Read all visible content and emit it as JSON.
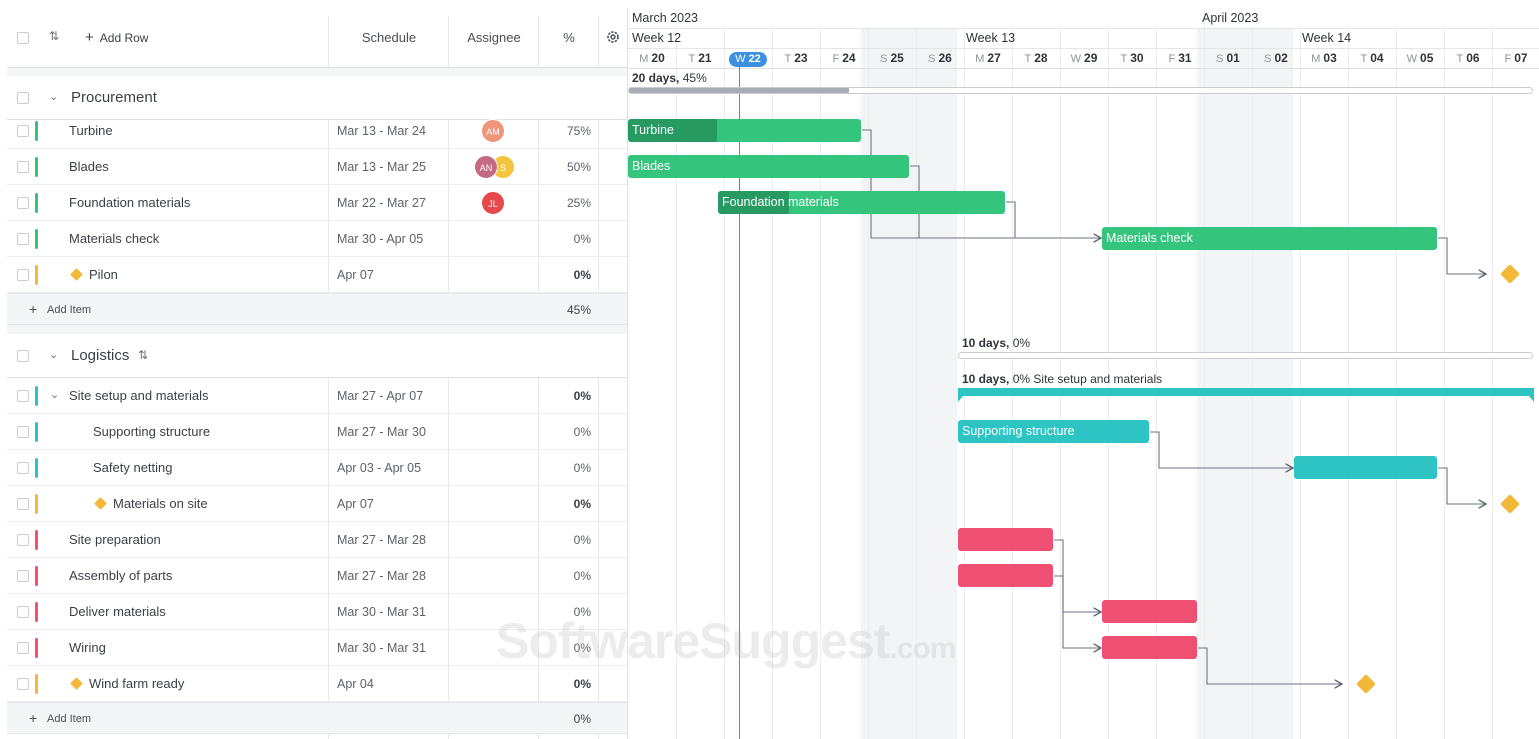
{
  "header": {
    "add_row_label": "Add Row",
    "col_schedule": "Schedule",
    "col_assignee": "Assignee",
    "col_percent": "%"
  },
  "groups": [
    {
      "name": "Procurement",
      "items": [
        {
          "name": "Turbine",
          "schedule": "Mar 13 - Mar 24",
          "pct": "75%",
          "color": "#34c47c",
          "assignees": [
            {
              "initials": "AM",
              "color": "#f0957a"
            }
          ]
        },
        {
          "name": "Blades",
          "schedule": "Mar 13 - Mar 25",
          "pct": "50%",
          "color": "#34c47c",
          "assignees": [
            {
              "initials": "AN",
              "color": "#c46a83"
            },
            {
              "initials": "S",
              "color": "#f3c53e"
            }
          ]
        },
        {
          "name": "Foundation materials",
          "schedule": "Mar 22 - Mar 27",
          "pct": "25%",
          "color": "#34c47c",
          "assignees": [
            {
              "initials": "JL",
              "color": "#e8484a"
            }
          ]
        },
        {
          "name": "Materials check",
          "schedule": "Mar 30 - Apr 05",
          "pct": "0%",
          "color": "#34c47c",
          "assignees": []
        },
        {
          "name": "Pilon",
          "schedule": "Apr 07",
          "pct": "0%",
          "color": "#f2b938",
          "milestone": true,
          "assignees": []
        }
      ],
      "add_item_label": "Add Item",
      "total_pct": "45%"
    },
    {
      "name": "Logistics",
      "items": [
        {
          "name": "Site setup and materials",
          "schedule": "Mar 27 - Apr 07",
          "pct": "0%",
          "color": "#2ec4c4",
          "parent": true
        },
        {
          "name": "Supporting structure",
          "schedule": "Mar 27 - Mar 30",
          "pct": "0%",
          "color": "#2ec4c4",
          "child": true
        },
        {
          "name": "Safety netting",
          "schedule": "Apr 03 - Apr 05",
          "pct": "0%",
          "color": "#2ec4c4",
          "child": true
        },
        {
          "name": "Materials on site",
          "schedule": "Apr 07",
          "pct": "0%",
          "color": "#f2b938",
          "child": true,
          "milestone": true
        },
        {
          "name": "Site preparation",
          "schedule": "Mar 27 - Mar 28",
          "pct": "0%",
          "color": "#ee4f72"
        },
        {
          "name": "Assembly of parts",
          "schedule": "Mar 27 - Mar 28",
          "pct": "0%",
          "color": "#ee4f72"
        },
        {
          "name": "Deliver materials",
          "schedule": "Mar 30 - Mar 31",
          "pct": "0%",
          "color": "#ee4f72"
        },
        {
          "name": "Wiring",
          "schedule": "Mar 30 - Mar 31",
          "pct": "0%",
          "color": "#ee4f72"
        },
        {
          "name": "Wind farm ready",
          "schedule": "Apr 04",
          "pct": "0%",
          "color": "#f2b938",
          "milestone": true
        }
      ],
      "add_item_label": "Add Item",
      "total_pct": "0%"
    }
  ],
  "timeline": {
    "months": [
      "March 2023",
      "April 2023"
    ],
    "weeks": [
      "Week 12",
      "Week 13",
      "Week 14"
    ],
    "days": [
      {
        "l": "M",
        "n": "20"
      },
      {
        "l": "T",
        "n": "21"
      },
      {
        "l": "W",
        "n": "22",
        "today": true
      },
      {
        "l": "T",
        "n": "23"
      },
      {
        "l": "F",
        "n": "24"
      },
      {
        "l": "S",
        "n": "25",
        "weekend": true
      },
      {
        "l": "S",
        "n": "26",
        "weekend": true
      },
      {
        "l": "M",
        "n": "27"
      },
      {
        "l": "T",
        "n": "28"
      },
      {
        "l": "W",
        "n": "29"
      },
      {
        "l": "T",
        "n": "30"
      },
      {
        "l": "F",
        "n": "31"
      },
      {
        "l": "S",
        "n": "01",
        "weekend": true
      },
      {
        "l": "S",
        "n": "02",
        "weekend": true
      },
      {
        "l": "M",
        "n": "03"
      },
      {
        "l": "T",
        "n": "04"
      },
      {
        "l": "W",
        "n": "05"
      },
      {
        "l": "T",
        "n": "06"
      },
      {
        "l": "F",
        "n": "07"
      }
    ],
    "procurement_summary": {
      "days": "20 days,",
      "pct": "45%",
      "progress": 0.45
    },
    "logistics_summary": {
      "days": "10 days,",
      "pct": "0%"
    },
    "site_summary": {
      "days": "10 days,",
      "pct": "0%",
      "name": "Site setup and materials"
    },
    "bar_labels": {
      "turbine": "Turbine",
      "blades": "Blades",
      "foundation": "Foundation materials",
      "materials_check": "Materials check",
      "supporting": "Supporting structure"
    },
    "progress": {
      "turbine": 0.75,
      "blades": 0.5,
      "foundation": 0.25
    }
  },
  "watermark": {
    "main": "SoftwareSuggest",
    "suffix": ".com"
  }
}
